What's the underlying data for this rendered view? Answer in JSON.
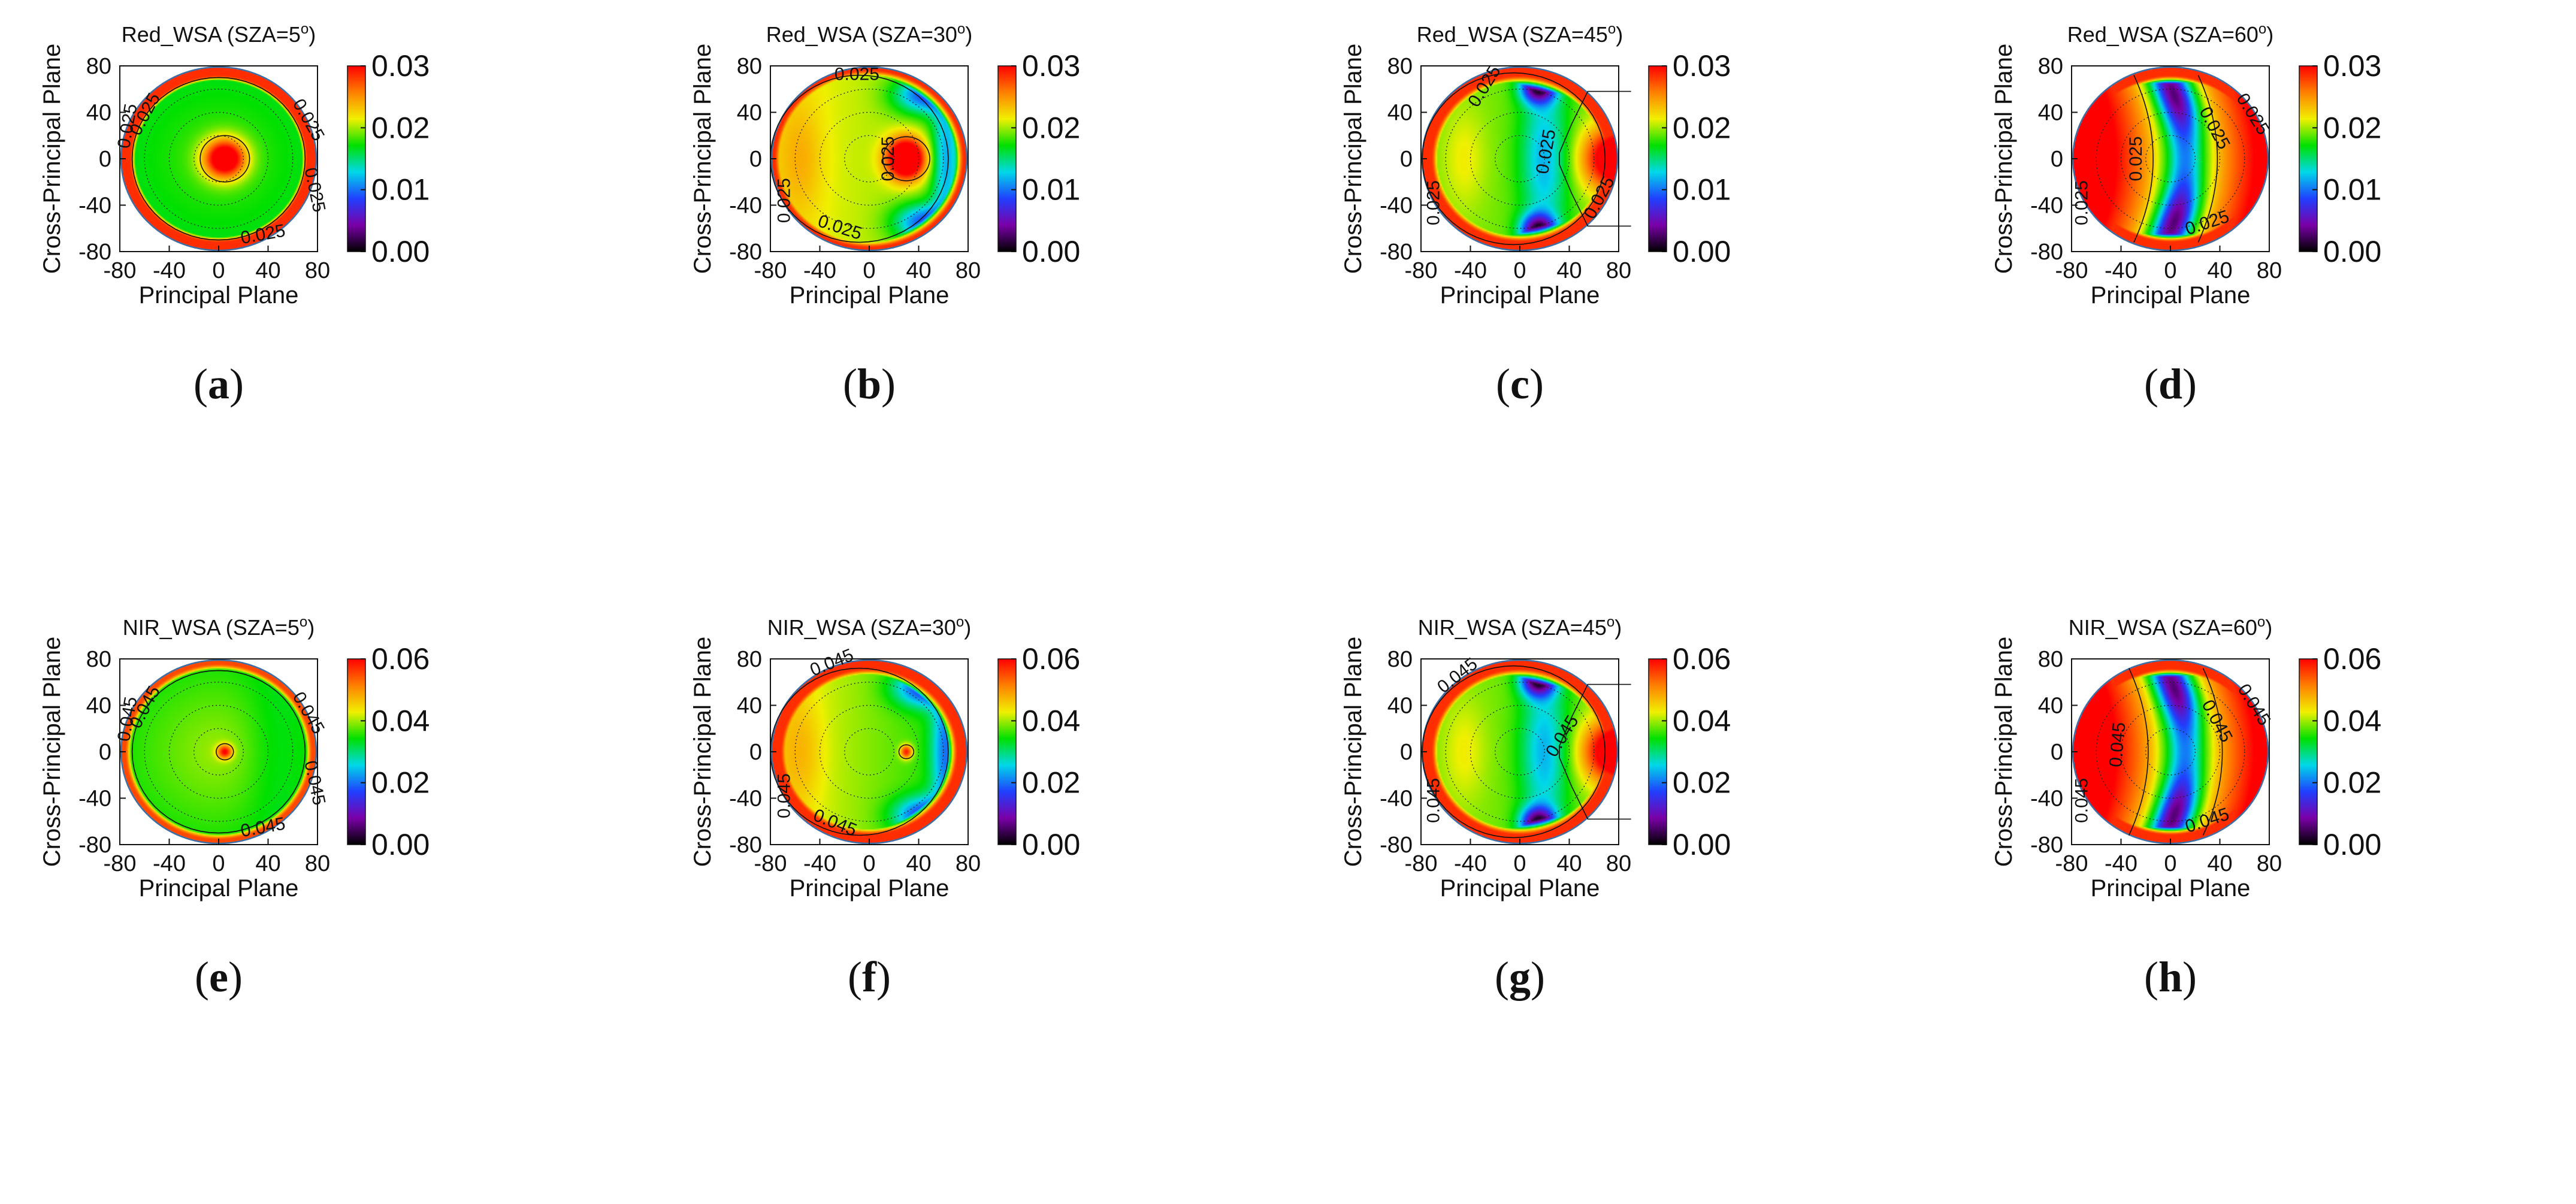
{
  "figure": {
    "colormap": [
      "#000000",
      "#7a00a8",
      "#2040ff",
      "#00d8e8",
      "#00e000",
      "#f0f000",
      "#ff8000",
      "#ff0000"
    ],
    "xlabel": "Principal Plane",
    "ylabel": "Cross-Principal Plane",
    "axis_ticks": [
      "-80",
      "-40",
      "0",
      "40",
      "80"
    ]
  },
  "chart_data": [
    {
      "type": "heatmap",
      "id": "a",
      "panel_label": "a",
      "title_prefix": "Red_WSA (SZA=5",
      "title_suffix": ")",
      "band": "Red",
      "sza_deg": 5,
      "xlabel": "Principal Plane",
      "ylabel": "Cross-Principal Plane",
      "xlim": [
        -80,
        80
      ],
      "ylim": [
        -80,
        80
      ],
      "colorbar": {
        "range": [
          0.0,
          0.03
        ],
        "ticks": [
          "0.00",
          "0.01",
          "0.02",
          "0.03"
        ]
      },
      "contour_level": "0.025",
      "contour_labels": [
        {
          "text": "0.025",
          "x": 36,
          "y": -66,
          "rot": -10
        },
        {
          "text": "0.025",
          "x": 72,
          "y": 33,
          "rot": 60
        },
        {
          "text": "0.025",
          "x": 77,
          "y": -27,
          "rot": 78
        },
        {
          "text": "0.025",
          "x": -59,
          "y": 38,
          "rot": -62
        },
        {
          "text": "0.025",
          "x": -73,
          "y": 28,
          "rot": -80
        }
      ]
    },
    {
      "type": "heatmap",
      "id": "b",
      "panel_label": "b",
      "title_prefix": "Red_WSA (SZA=30",
      "title_suffix": ")",
      "band": "Red",
      "sza_deg": 30,
      "xlabel": "Principal Plane",
      "ylabel": "Cross-Principal Plane",
      "xlim": [
        -80,
        80
      ],
      "ylim": [
        -80,
        80
      ],
      "colorbar": {
        "range": [
          0.0,
          0.03
        ],
        "ticks": [
          "0.00",
          "0.01",
          "0.02",
          "0.03"
        ]
      },
      "contour_level": "0.025",
      "contour_labels": [
        {
          "text": "0.025",
          "x": -10,
          "y": 72,
          "rot": 0
        },
        {
          "text": "0.025",
          "x": 16,
          "y": 0,
          "rot": -90
        },
        {
          "text": "0.025",
          "x": -68,
          "y": -36,
          "rot": -90
        },
        {
          "text": "0.025",
          "x": -24,
          "y": -60,
          "rot": 18
        }
      ]
    },
    {
      "type": "heatmap",
      "id": "c",
      "panel_label": "c",
      "title_prefix": "Red_WSA (SZA=45",
      "title_suffix": ")",
      "band": "Red",
      "sza_deg": 45,
      "xlabel": "Principal Plane",
      "ylabel": "Cross-Principal Plane",
      "xlim": [
        -80,
        80
      ],
      "ylim": [
        -80,
        80
      ],
      "colorbar": {
        "range": [
          0.0,
          0.03
        ],
        "ticks": [
          "0.00",
          "0.01",
          "0.02",
          "0.03"
        ]
      },
      "contour_level": "0.025",
      "contour_labels": [
        {
          "text": "0.025",
          "x": -28,
          "y": 62,
          "rot": -58
        },
        {
          "text": "0.025",
          "x": 22,
          "y": 6,
          "rot": -80
        },
        {
          "text": "0.025",
          "x": 65,
          "y": -34,
          "rot": -62
        },
        {
          "text": "0.025",
          "x": -69,
          "y": -38,
          "rot": -90
        }
      ]
    },
    {
      "type": "heatmap",
      "id": "d",
      "panel_label": "d",
      "title_prefix": "Red_WSA (SZA=60",
      "title_suffix": ")",
      "band": "Red",
      "sza_deg": 60,
      "xlabel": "Principal Plane",
      "ylabel": "Cross-Principal Plane",
      "xlim": [
        -80,
        80
      ],
      "ylim": [
        -80,
        80
      ],
      "colorbar": {
        "range": [
          0.0,
          0.03
        ],
        "ticks": [
          "0.00",
          "0.01",
          "0.02",
          "0.03"
        ]
      },
      "contour_level": "0.025",
      "contour_labels": [
        {
          "text": "0.025",
          "x": 35,
          "y": 26,
          "rot": 62
        },
        {
          "text": "0.025",
          "x": -27,
          "y": 0,
          "rot": -90
        },
        {
          "text": "0.025",
          "x": 30,
          "y": -56,
          "rot": -18
        },
        {
          "text": "0.025",
          "x": 66,
          "y": 38,
          "rot": 58
        },
        {
          "text": "0.025",
          "x": -71,
          "y": -38,
          "rot": -90
        }
      ]
    },
    {
      "type": "heatmap",
      "id": "e",
      "panel_label": "e",
      "title_prefix": "NIR_WSA (SZA=5",
      "title_suffix": ")",
      "band": "NIR",
      "sza_deg": 5,
      "xlabel": "Principal Plane",
      "ylabel": "Cross-Principal Plane",
      "xlim": [
        -80,
        80
      ],
      "ylim": [
        -80,
        80
      ],
      "colorbar": {
        "range": [
          0.0,
          0.06
        ],
        "ticks": [
          "0.00",
          "0.02",
          "0.04",
          "0.06"
        ]
      },
      "contour_level": "0.045",
      "contour_labels": [
        {
          "text": "0.045",
          "x": 36,
          "y": -66,
          "rot": -10
        },
        {
          "text": "0.045",
          "x": 72,
          "y": 33,
          "rot": 60
        },
        {
          "text": "0.045",
          "x": 77,
          "y": -27,
          "rot": 78
        },
        {
          "text": "0.045",
          "x": -59,
          "y": 38,
          "rot": -62
        },
        {
          "text": "0.045",
          "x": -73,
          "y": 28,
          "rot": -80
        }
      ]
    },
    {
      "type": "heatmap",
      "id": "f",
      "panel_label": "f",
      "title_prefix": "NIR_WSA (SZA=30",
      "title_suffix": ")",
      "band": "NIR",
      "sza_deg": 30,
      "xlabel": "Principal Plane",
      "ylabel": "Cross-Principal Plane",
      "xlim": [
        -80,
        80
      ],
      "ylim": [
        -80,
        80
      ],
      "colorbar": {
        "range": [
          0.0,
          0.06
        ],
        "ticks": [
          "0.00",
          "0.02",
          "0.04",
          "0.06"
        ]
      },
      "contour_level": "0.045",
      "contour_labels": [
        {
          "text": "0.045",
          "x": -30,
          "y": 76,
          "rot": -22
        },
        {
          "text": "0.045",
          "x": -68,
          "y": -38,
          "rot": -90
        },
        {
          "text": "0.045",
          "x": -28,
          "y": -62,
          "rot": 22
        }
      ]
    },
    {
      "type": "heatmap",
      "id": "g",
      "panel_label": "g",
      "title_prefix": "NIR_WSA (SZA=45",
      "title_suffix": ")",
      "band": "NIR",
      "sza_deg": 45,
      "xlabel": "Principal Plane",
      "ylabel": "Cross-Principal Plane",
      "xlim": [
        -80,
        80
      ],
      "ylim": [
        -80,
        80
      ],
      "colorbar": {
        "range": [
          0.0,
          0.06
        ],
        "ticks": [
          "0.00",
          "0.02",
          "0.04",
          "0.06"
        ]
      },
      "contour_level": "0.045",
      "contour_labels": [
        {
          "text": "0.045",
          "x": -50,
          "y": 65,
          "rot": -38
        },
        {
          "text": "0.045",
          "x": 35,
          "y": 13,
          "rot": -58
        },
        {
          "text": "0.045",
          "x": -69,
          "y": -42,
          "rot": -90
        }
      ]
    },
    {
      "type": "heatmap",
      "id": "h",
      "panel_label": "h",
      "title_prefix": "NIR_WSA (SZA=60",
      "title_suffix": ")",
      "band": "NIR",
      "sza_deg": 60,
      "xlabel": "Principal Plane",
      "ylabel": "Cross-Principal Plane",
      "xlim": [
        -80,
        80
      ],
      "ylim": [
        -80,
        80
      ],
      "colorbar": {
        "range": [
          0.0,
          0.06
        ],
        "ticks": [
          "0.00",
          "0.02",
          "0.04",
          "0.06"
        ]
      },
      "contour_level": "0.045",
      "contour_labels": [
        {
          "text": "0.045",
          "x": 37,
          "y": 26,
          "rot": 62
        },
        {
          "text": "0.045",
          "x": -42,
          "y": 6,
          "rot": -85
        },
        {
          "text": "0.045",
          "x": 30,
          "y": -60,
          "rot": -18
        },
        {
          "text": "0.045",
          "x": 67,
          "y": 40,
          "rot": 58
        },
        {
          "text": "0.045",
          "x": -71,
          "y": -42,
          "rot": -90
        }
      ]
    }
  ]
}
